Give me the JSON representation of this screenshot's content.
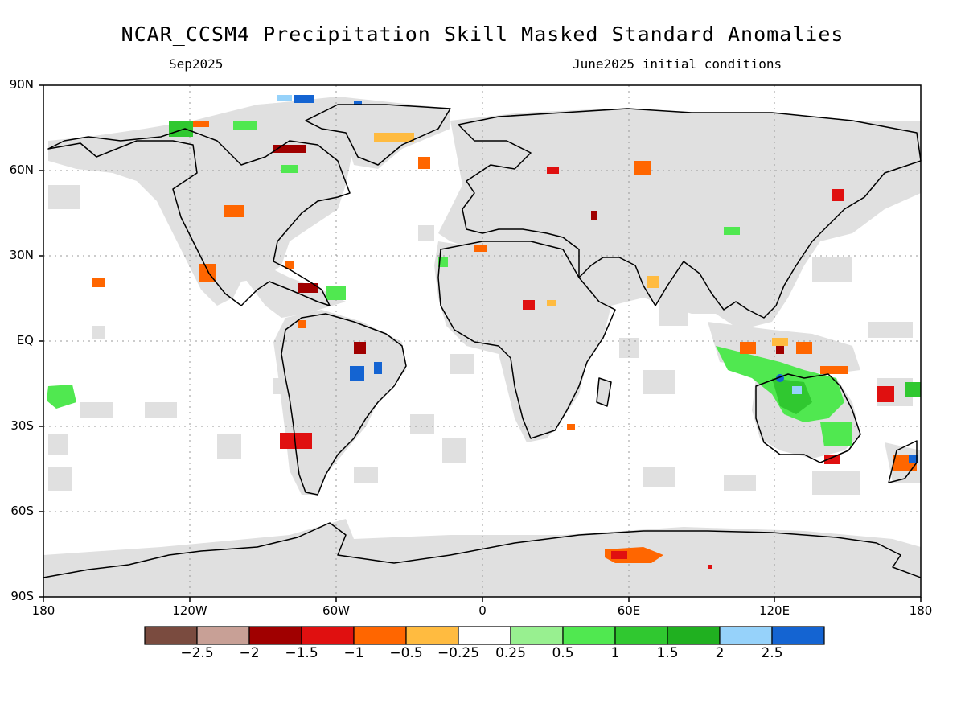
{
  "title": "NCAR_CCSM4 Precipitation Skill Masked Standard Anomalies",
  "subtitle_left": "Sep2025",
  "subtitle_right": "June2025 initial conditions",
  "lat_labels": [
    "90N",
    "60N",
    "30N",
    "EQ",
    "30S",
    "60S",
    "90S"
  ],
  "lon_labels": [
    "180",
    "120W",
    "60W",
    "0",
    "60E",
    "120E",
    "180"
  ],
  "colorbar": {
    "colors": [
      "#7a4b3f",
      "#c8a096",
      "#a00000",
      "#e01010",
      "#ff6600",
      "#ffbb40",
      "#ffffff",
      "#98f090",
      "#50e850",
      "#30c830",
      "#20b020",
      "#96d2fa",
      "#1464d2"
    ],
    "labels": [
      "−2.5",
      "−2",
      "−1.5",
      "−1",
      "−0.5",
      "−0.25",
      "0.25",
      "0.5",
      "1",
      "1.5",
      "2",
      "2.5"
    ]
  },
  "colors": {
    "masked_land": "#e0e0e0",
    "ocean": "#ffffff",
    "coastline": "#000000",
    "grid": "#999999"
  }
}
